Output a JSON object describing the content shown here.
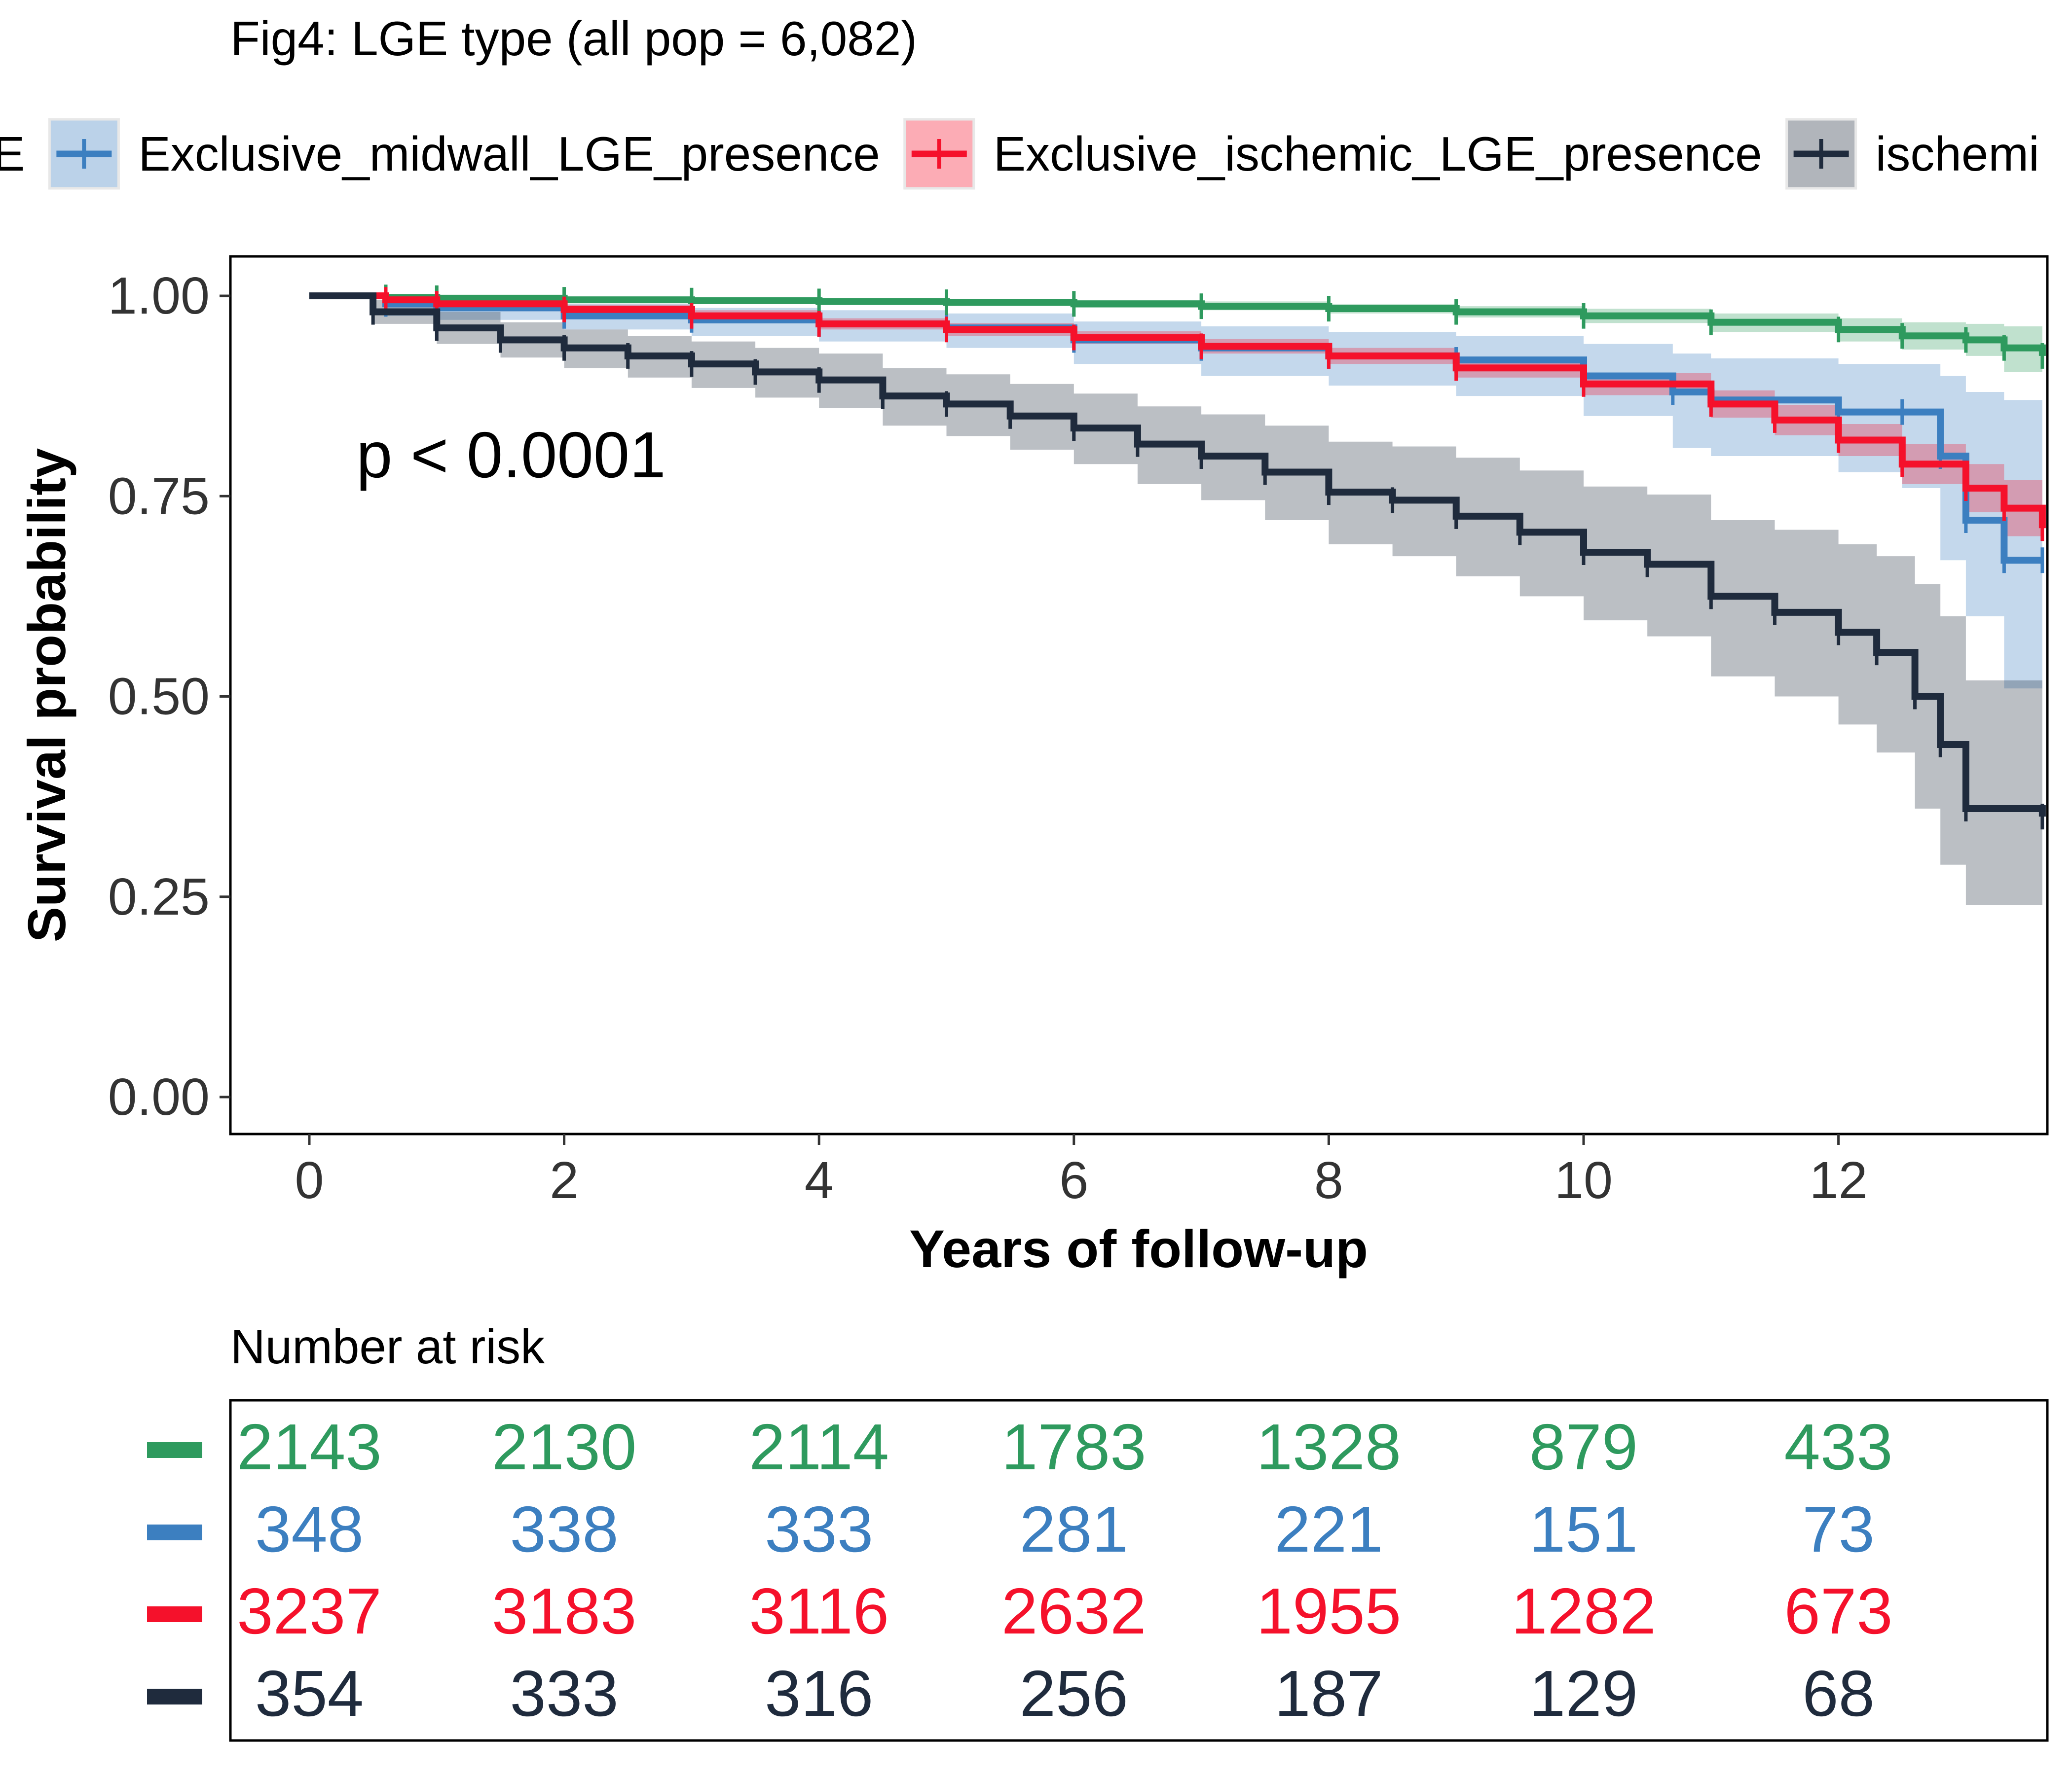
{
  "chart_data": {
    "type": "line",
    "subtype": "kaplan-meier",
    "title": "Fig4: LGE type (all pop = 6,082)",
    "xlabel": "Years of follow-up",
    "ylabel": "Survival probability",
    "xlim": [
      0,
      13.6
    ],
    "ylim": [
      0,
      1
    ],
    "x_ticks": [
      0,
      2,
      4,
      6,
      8,
      10,
      12
    ],
    "y_ticks": [
      "0.00",
      "0.25",
      "0.50",
      "0.75",
      "1.00"
    ],
    "grid": false,
    "legend_position": "top",
    "annotation": "p < 0.0001",
    "legend_items": [
      {
        "label": "E",
        "color": "#2E9A5E"
      },
      {
        "label": "Exclusive_midwall_LGE_presence",
        "color": "#3C7FC0"
      },
      {
        "label": "Exclusive_ischemic_LGE_presence",
        "color": "#F5112B"
      },
      {
        "label": "ischemi",
        "color": "#1F2B3D"
      }
    ],
    "series": [
      {
        "color": "#2E9A5E",
        "x": [
          0,
          0.6,
          1.0,
          2.0,
          3.0,
          4.0,
          5.0,
          6.0,
          7.0,
          8.0,
          9.0,
          10.0,
          11.0,
          12.0,
          12.5,
          13.0,
          13.3,
          13.6
        ],
        "y": [
          1.0,
          0.998,
          0.997,
          0.995,
          0.994,
          0.993,
          0.992,
          0.99,
          0.987,
          0.984,
          0.98,
          0.975,
          0.967,
          0.958,
          0.95,
          0.945,
          0.935,
          0.925
        ],
        "lower": [
          1.0,
          0.994,
          0.993,
          0.991,
          0.99,
          0.989,
          0.988,
          0.985,
          0.982,
          0.978,
          0.973,
          0.966,
          0.955,
          0.943,
          0.933,
          0.925,
          0.905,
          0.89
        ],
        "upper": [
          1.0,
          1.0,
          1.0,
          0.999,
          0.998,
          0.997,
          0.996,
          0.995,
          0.993,
          0.99,
          0.987,
          0.984,
          0.978,
          0.972,
          0.967,
          0.965,
          0.962,
          0.96
        ]
      },
      {
        "color": "#3C7FC0",
        "x": [
          0,
          0.6,
          1.0,
          2.0,
          3.0,
          4.0,
          5.0,
          6.0,
          7.0,
          8.0,
          9.0,
          10.0,
          10.7,
          11.0,
          12.0,
          12.5,
          12.8,
          13.0,
          13.3,
          13.6
        ],
        "y": [
          1.0,
          0.99,
          0.985,
          0.975,
          0.97,
          0.965,
          0.96,
          0.945,
          0.935,
          0.925,
          0.92,
          0.9,
          0.88,
          0.87,
          0.855,
          0.855,
          0.8,
          0.72,
          0.67,
          0.67
        ],
        "lower": [
          1.0,
          0.975,
          0.97,
          0.958,
          0.95,
          0.943,
          0.935,
          0.915,
          0.9,
          0.888,
          0.875,
          0.85,
          0.81,
          0.8,
          0.78,
          0.76,
          0.67,
          0.6,
          0.51,
          0.51
        ],
        "upper": [
          1.0,
          1.0,
          0.998,
          0.99,
          0.985,
          0.982,
          0.978,
          0.968,
          0.962,
          0.955,
          0.95,
          0.94,
          0.928,
          0.922,
          0.915,
          0.915,
          0.9,
          0.88,
          0.87,
          0.86
        ]
      },
      {
        "color": "#F5112B",
        "x": [
          0,
          0.6,
          1.0,
          2.0,
          3.0,
          4.0,
          5.0,
          6.0,
          7.0,
          8.0,
          9.0,
          10.0,
          11.0,
          11.5,
          12.0,
          12.5,
          13.0,
          13.3,
          13.6
        ],
        "y": [
          1.0,
          0.995,
          0.99,
          0.983,
          0.975,
          0.965,
          0.958,
          0.948,
          0.937,
          0.925,
          0.91,
          0.89,
          0.865,
          0.845,
          0.82,
          0.79,
          0.76,
          0.735,
          0.71
        ],
        "lower": [
          1.0,
          0.99,
          0.985,
          0.977,
          0.968,
          0.958,
          0.95,
          0.94,
          0.928,
          0.915,
          0.898,
          0.876,
          0.848,
          0.826,
          0.8,
          0.765,
          0.73,
          0.7,
          0.67
        ],
        "upper": [
          1.0,
          0.999,
          0.995,
          0.989,
          0.982,
          0.972,
          0.966,
          0.956,
          0.946,
          0.935,
          0.922,
          0.904,
          0.882,
          0.864,
          0.84,
          0.815,
          0.79,
          0.77,
          0.75
        ]
      },
      {
        "color": "#1F2B3D",
        "x": [
          0,
          0.5,
          1.0,
          1.5,
          2.0,
          2.5,
          3.0,
          3.5,
          4.0,
          4.5,
          5.0,
          5.5,
          6.0,
          6.5,
          7.0,
          7.5,
          8.0,
          8.5,
          9.0,
          9.5,
          10.0,
          10.5,
          11.0,
          11.5,
          12.0,
          12.3,
          12.6,
          12.8,
          13.0,
          13.6
        ],
        "y": [
          1.0,
          0.98,
          0.96,
          0.945,
          0.935,
          0.925,
          0.915,
          0.905,
          0.895,
          0.875,
          0.865,
          0.85,
          0.835,
          0.815,
          0.8,
          0.78,
          0.755,
          0.745,
          0.725,
          0.705,
          0.68,
          0.665,
          0.625,
          0.605,
          0.58,
          0.555,
          0.5,
          0.44,
          0.36,
          0.35
        ],
        "lower": [
          1.0,
          0.965,
          0.94,
          0.923,
          0.91,
          0.898,
          0.885,
          0.873,
          0.86,
          0.838,
          0.825,
          0.808,
          0.79,
          0.765,
          0.745,
          0.72,
          0.69,
          0.675,
          0.65,
          0.625,
          0.595,
          0.575,
          0.525,
          0.5,
          0.465,
          0.43,
          0.36,
          0.29,
          0.24,
          0.24
        ],
        "upper": [
          1.0,
          0.995,
          0.98,
          0.967,
          0.958,
          0.95,
          0.943,
          0.935,
          0.928,
          0.91,
          0.902,
          0.89,
          0.878,
          0.862,
          0.852,
          0.838,
          0.818,
          0.812,
          0.798,
          0.782,
          0.762,
          0.752,
          0.72,
          0.708,
          0.69,
          0.675,
          0.64,
          0.6,
          0.52,
          0.51
        ]
      }
    ],
    "risk_table": {
      "title": "Number at risk",
      "times": [
        0,
        2,
        4,
        6,
        8,
        10,
        12
      ],
      "rows": [
        {
          "color": "#2E9A5E",
          "values": [
            "2143",
            "2130",
            "2114",
            "1783",
            "1328",
            "879",
            "433"
          ]
        },
        {
          "color": "#3C7FC0",
          "values": [
            "348",
            "338",
            "333",
            "281",
            "221",
            "151",
            "73"
          ]
        },
        {
          "color": "#F5112B",
          "values": [
            "3237",
            "3183",
            "3116",
            "2632",
            "1955",
            "1282",
            "673"
          ]
        },
        {
          "color": "#1F2B3D",
          "values": [
            "354",
            "333",
            "316",
            "256",
            "187",
            "129",
            "68"
          ]
        }
      ]
    }
  }
}
